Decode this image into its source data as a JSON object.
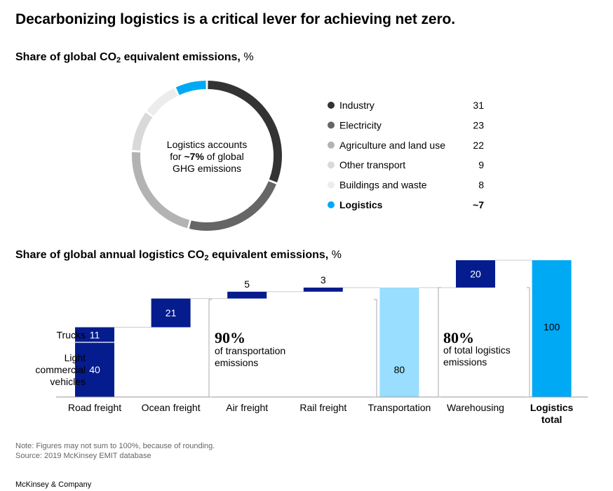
{
  "title": "Decarbonizing logistics is a critical lever for achieving net zero.",
  "chart1": {
    "subtitle_main": "Share of global CO",
    "subtitle_sub": "2",
    "subtitle_rest": " equivalent emissions,",
    "subtitle_unit": "%",
    "center_text": [
      "Logistics accounts",
      "for ~7% of global",
      "GHG emissions"
    ]
  },
  "chart2": {
    "subtitle_main": "Share of global annual logistics CO",
    "subtitle_sub": "2",
    "subtitle_rest": " equivalent emissions,",
    "subtitle_unit": "%"
  },
  "chart_data": [
    {
      "type": "pie",
      "variant": "donut",
      "categories": [
        "Industry",
        "Electricity",
        "Agriculture and land use",
        "Other transport",
        "Buildings and waste",
        "Logistics"
      ],
      "values": [
        31,
        23,
        22,
        9,
        8,
        7
      ],
      "value_labels": [
        "31",
        "23",
        "22",
        "9",
        "8",
        "~7"
      ],
      "colors": [
        "#333333",
        "#666666",
        "#b3b3b3",
        "#d9d9d9",
        "#ececec",
        "#00a9f4"
      ],
      "highlight": "Logistics",
      "legend_position": "right"
    },
    {
      "type": "bar",
      "variant": "waterfall",
      "categories": [
        "Road freight",
        "Ocean freight",
        "Air freight",
        "Rail freight",
        "Transportation",
        "Warehousing",
        "Logistics total"
      ],
      "ylim": [
        0,
        100
      ],
      "bars": [
        {
          "category": "Road freight",
          "segments": [
            {
              "label": "Light commercial vehicles",
              "value": 40,
              "start": 0
            },
            {
              "label": "Trucks",
              "value": 11,
              "start": 40
            }
          ],
          "color": "#051c8e",
          "kind": "step"
        },
        {
          "category": "Ocean freight",
          "value": 21,
          "start": 51,
          "color": "#051c8e",
          "kind": "step"
        },
        {
          "category": "Air freight",
          "value": 5,
          "start": 72,
          "color": "#051c8e",
          "kind": "step"
        },
        {
          "category": "Rail freight",
          "value": 3,
          "start": 77,
          "color": "#051c8e",
          "kind": "step"
        },
        {
          "category": "Transportation",
          "value": 80,
          "start": 0,
          "color": "#99ddff",
          "kind": "subtotal"
        },
        {
          "category": "Warehousing",
          "value": 20,
          "start": 80,
          "color": "#051c8e",
          "kind": "step"
        },
        {
          "category": "Logistics total",
          "value": 100,
          "start": 0,
          "color": "#00a9f4",
          "kind": "total"
        }
      ],
      "annotations": [
        {
          "big": "90%",
          "text": [
            "of transportation",
            "emissions"
          ]
        },
        {
          "big": "80%",
          "text": [
            "of total logistics",
            "emissions"
          ]
        }
      ]
    }
  ],
  "notes": {
    "note": "Note: Figures may not sum to 100%, because of rounding.",
    "source": "Source: 2019 McKinsey EMIT database"
  },
  "brand": "McKinsey & Company"
}
